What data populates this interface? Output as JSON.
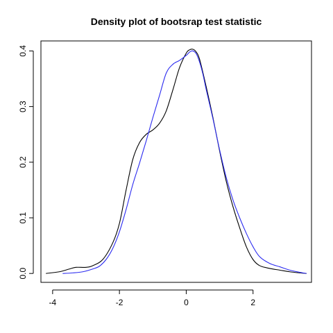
{
  "chart_data": {
    "type": "line",
    "title": "Density plot of bootsrap test statistic",
    "xlabel": "",
    "ylabel": "",
    "xlim": [
      -4.35,
      3.75
    ],
    "ylim": [
      -0.016,
      0.418
    ],
    "x_ticks": [
      -4,
      -2,
      0,
      2
    ],
    "x_tick_labels": [
      "-4",
      "-2",
      "0",
      "2"
    ],
    "y_ticks": [
      0.0,
      0.1,
      0.2,
      0.3,
      0.4
    ],
    "y_tick_labels": [
      "0.0",
      "0.1",
      "0.2",
      "0.3",
      "0.4"
    ],
    "grid": false,
    "series": [
      {
        "color": "#000000",
        "x": [
          -4.2,
          -3.8,
          -3.5,
          -3.3,
          -3.0,
          -2.8,
          -2.5,
          -2.2,
          -2.0,
          -1.8,
          -1.6,
          -1.4,
          -1.2,
          -1.0,
          -0.8,
          -0.6,
          -0.4,
          -0.2,
          0.0,
          0.1,
          0.2,
          0.3,
          0.4,
          0.6,
          0.8,
          1.0,
          1.2,
          1.4,
          1.6,
          1.8,
          2.0,
          2.2,
          2.5,
          2.8,
          3.1,
          3.4,
          3.6
        ],
        "y": [
          0.0,
          0.003,
          0.008,
          0.011,
          0.011,
          0.014,
          0.025,
          0.055,
          0.09,
          0.15,
          0.205,
          0.235,
          0.25,
          0.258,
          0.27,
          0.292,
          0.33,
          0.37,
          0.396,
          0.402,
          0.403,
          0.398,
          0.385,
          0.335,
          0.28,
          0.22,
          0.165,
          0.12,
          0.082,
          0.048,
          0.025,
          0.014,
          0.009,
          0.006,
          0.003,
          0.001,
          0.0
        ]
      },
      {
        "color": "#2b2bf0",
        "x": [
          -3.7,
          -3.4,
          -3.1,
          -2.8,
          -2.6,
          -2.4,
          -2.2,
          -2.0,
          -1.8,
          -1.6,
          -1.4,
          -1.2,
          -1.0,
          -0.8,
          -0.6,
          -0.4,
          -0.2,
          0.0,
          0.1,
          0.2,
          0.3,
          0.4,
          0.5,
          0.6,
          0.8,
          1.0,
          1.2,
          1.4,
          1.6,
          1.8,
          2.0,
          2.2,
          2.5,
          2.8,
          3.1,
          3.4,
          3.6
        ],
        "y": [
          0.0,
          0.001,
          0.003,
          0.008,
          0.013,
          0.025,
          0.045,
          0.075,
          0.115,
          0.16,
          0.198,
          0.238,
          0.28,
          0.32,
          0.36,
          0.376,
          0.383,
          0.392,
          0.398,
          0.4,
          0.395,
          0.38,
          0.358,
          0.33,
          0.278,
          0.222,
          0.172,
          0.132,
          0.1,
          0.072,
          0.048,
          0.03,
          0.018,
          0.012,
          0.006,
          0.002,
          0.0
        ]
      }
    ]
  }
}
